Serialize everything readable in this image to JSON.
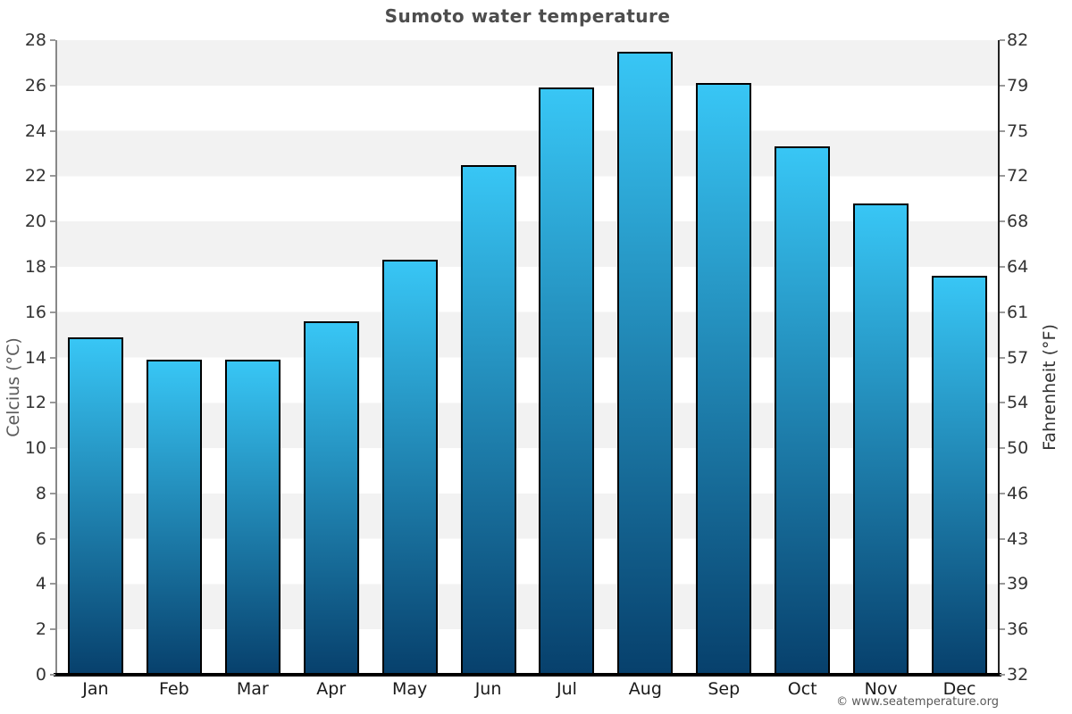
{
  "chart_data": {
    "type": "bar",
    "title": "Sumoto water temperature",
    "categories": [
      "Jan",
      "Feb",
      "Mar",
      "Apr",
      "May",
      "Jun",
      "Jul",
      "Aug",
      "Sep",
      "Oct",
      "Nov",
      "Dec"
    ],
    "values": [
      14.9,
      13.9,
      13.9,
      15.6,
      18.3,
      22.5,
      25.9,
      27.5,
      26.1,
      23.3,
      20.8,
      17.6
    ],
    "ylabel_left": "Celcius (°C)",
    "ylabel_right": "Fahrenheit (°F)",
    "ylim": [
      0,
      28
    ],
    "ytick_step_celsius": 2,
    "yticks_celsius": [
      28,
      26,
      24,
      22,
      20,
      18,
      16,
      14,
      12,
      10,
      8,
      6,
      4,
      2,
      0
    ],
    "yticks_fahrenheit": [
      "82",
      "79",
      "75",
      "72",
      "68",
      "64",
      "61",
      "57",
      "54",
      "50",
      "46",
      "43",
      "39",
      "36",
      "32"
    ],
    "grid": "alternating horizontal bands every 2°C",
    "legend": "none"
  },
  "footer": {
    "watermark": "© www.seatemperature.org"
  },
  "colors": {
    "bar_gradient_top": "#38c6f5",
    "bar_gradient_bottom": "#07406c",
    "bar_border": "#000000",
    "band_gray": "#f2f2f2",
    "band_white": "#ffffff",
    "title_text": "#4d4d4d",
    "tick_label": "#333333",
    "month_label": "#1a1a1a",
    "axis_left": "#888888",
    "axis_right": "#222222",
    "axis_bottom": "#000000",
    "watermark": "#595959"
  }
}
